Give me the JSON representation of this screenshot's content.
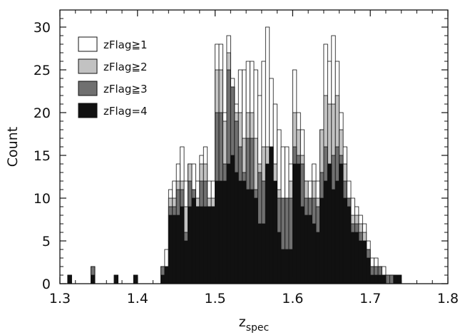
{
  "chart_data": {
    "type": "bar",
    "stacked_histogram": true,
    "xlabel": "z",
    "xlabel_sub": "spec",
    "ylabel": "Count",
    "xlim": [
      1.3,
      1.8
    ],
    "ylim": [
      0,
      32
    ],
    "xticks": [
      1.3,
      1.4,
      1.5,
      1.6,
      1.7,
      1.8
    ],
    "xtick_labels": [
      "1.3",
      "1.4",
      "1.5",
      "1.6",
      "1.7",
      "1.8"
    ],
    "yticks": [
      0,
      5,
      10,
      15,
      20,
      25,
      30
    ],
    "ytick_labels": [
      "0",
      "5",
      "10",
      "15",
      "20",
      "25",
      "30"
    ],
    "bin_width": 0.005,
    "bins": [
      1.31,
      1.315,
      1.32,
      1.325,
      1.33,
      1.335,
      1.34,
      1.345,
      1.35,
      1.355,
      1.36,
      1.365,
      1.37,
      1.375,
      1.38,
      1.385,
      1.39,
      1.395,
      1.4,
      1.405,
      1.41,
      1.415,
      1.42,
      1.425,
      1.43,
      1.435,
      1.44,
      1.445,
      1.45,
      1.455,
      1.46,
      1.465,
      1.47,
      1.475,
      1.48,
      1.485,
      1.49,
      1.495,
      1.5,
      1.505,
      1.51,
      1.515,
      1.52,
      1.525,
      1.53,
      1.535,
      1.54,
      1.545,
      1.55,
      1.555,
      1.56,
      1.565,
      1.57,
      1.575,
      1.58,
      1.585,
      1.59,
      1.595,
      1.6,
      1.605,
      1.61,
      1.615,
      1.62,
      1.625,
      1.63,
      1.635,
      1.64,
      1.645,
      1.65,
      1.655,
      1.66,
      1.665,
      1.67,
      1.675,
      1.68,
      1.685,
      1.69,
      1.695,
      1.7,
      1.705,
      1.71,
      1.715,
      1.72,
      1.725,
      1.73,
      1.735
    ],
    "series": [
      {
        "name": "zFlag≧1",
        "color": "#ffffff",
        "values": [
          1,
          0,
          0,
          0,
          0,
          0,
          2,
          0,
          0,
          0,
          0,
          0,
          1,
          0,
          0,
          0,
          0,
          1,
          0,
          0,
          0,
          0,
          0,
          0,
          2,
          4,
          11,
          12,
          14,
          16,
          12,
          14,
          14,
          12,
          15,
          16,
          12,
          12,
          28,
          28,
          20,
          29,
          24,
          21,
          25,
          25,
          26,
          26,
          25,
          22,
          26,
          30,
          24,
          21,
          18,
          16,
          16,
          14,
          25,
          20,
          18,
          12,
          12,
          14,
          12,
          18,
          28,
          26,
          29,
          26,
          20,
          16,
          12,
          10,
          9,
          8,
          7,
          5,
          3,
          3,
          2,
          2,
          1,
          1,
          1,
          1
        ]
      },
      {
        "name": "zFlag≧2",
        "color": "#c2c2c2",
        "values": [
          1,
          0,
          0,
          0,
          0,
          0,
          2,
          0,
          0,
          0,
          0,
          0,
          1,
          0,
          0,
          0,
          0,
          1,
          0,
          0,
          0,
          0,
          0,
          0,
          2,
          2,
          10,
          10,
          12,
          12,
          9,
          14,
          11,
          10,
          14,
          14,
          10,
          10,
          25,
          25,
          19,
          27,
          23,
          20,
          20,
          17,
          20,
          20,
          17,
          14,
          16,
          16,
          16,
          14,
          11,
          10,
          10,
          12,
          20,
          18,
          15,
          12,
          10,
          12,
          10,
          18,
          22,
          21,
          21,
          22,
          18,
          14,
          10,
          8,
          8,
          7,
          6,
          4,
          2,
          2,
          2,
          1,
          1,
          1,
          1,
          1
        ]
      },
      {
        "name": "zFlag≧3",
        "color": "#707070",
        "values": [
          1,
          0,
          0,
          0,
          0,
          0,
          2,
          0,
          0,
          0,
          0,
          0,
          1,
          0,
          0,
          0,
          0,
          1,
          0,
          0,
          0,
          0,
          0,
          0,
          2,
          2,
          9,
          9,
          11,
          11,
          6,
          12,
          11,
          9,
          12,
          12,
          9,
          9,
          20,
          20,
          14,
          25,
          23,
          19,
          16,
          13,
          17,
          17,
          11,
          13,
          12,
          12,
          12,
          11,
          10,
          10,
          10,
          10,
          16,
          15,
          14,
          10,
          10,
          10,
          9,
          13,
          16,
          14,
          15,
          16,
          15,
          12,
          10,
          7,
          7,
          6,
          5,
          4,
          2,
          2,
          2,
          1,
          1,
          1,
          1,
          1
        ]
      },
      {
        "name": "zFlag=4",
        "color": "#111111",
        "values": [
          1,
          0,
          0,
          0,
          0,
          0,
          1,
          0,
          0,
          0,
          0,
          0,
          1,
          0,
          0,
          0,
          0,
          1,
          0,
          0,
          0,
          0,
          0,
          0,
          1,
          2,
          8,
          8,
          8,
          9,
          5,
          9,
          10,
          9,
          9,
          9,
          9,
          9,
          12,
          12,
          12,
          14,
          15,
          13,
          12,
          12,
          11,
          11,
          10,
          7,
          7,
          14,
          16,
          12,
          6,
          4,
          4,
          4,
          14,
          14,
          9,
          8,
          8,
          7,
          6,
          10,
          12,
          14,
          11,
          12,
          14,
          10,
          9,
          6,
          6,
          5,
          5,
          3,
          1,
          1,
          1,
          1,
          0,
          0,
          1,
          1
        ]
      }
    ],
    "legend": {
      "placement": "top-left",
      "entries": [
        "zFlag≧1",
        "zFlag≧2",
        "zFlag≧3",
        "zFlag=4"
      ]
    }
  }
}
